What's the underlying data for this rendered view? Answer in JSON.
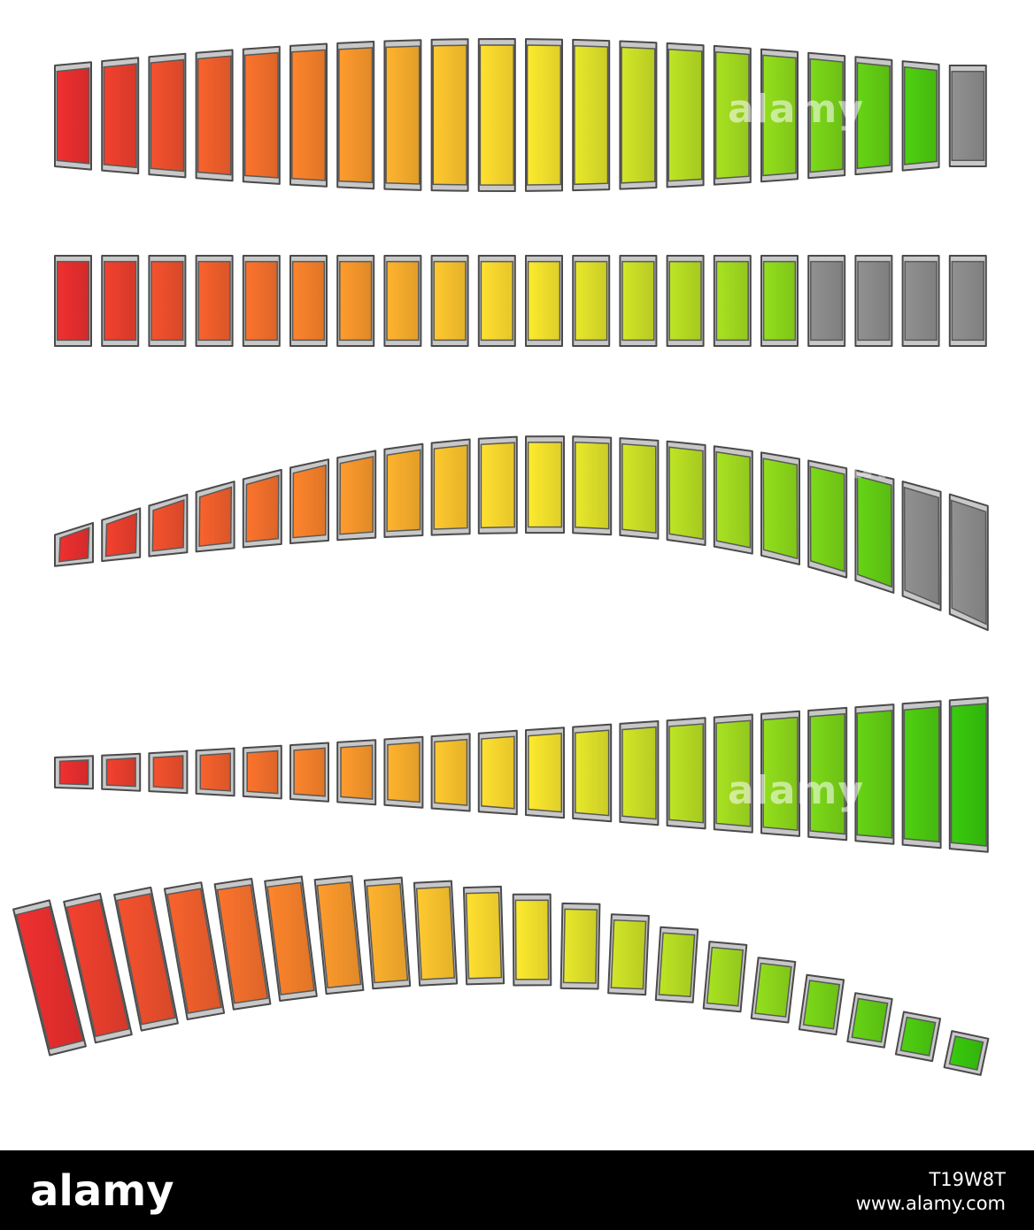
{
  "colors": {
    "frame_stroke": "#4a4a4a",
    "frame_fill": "#c8c8c8",
    "off_segment": "#8a8a8a",
    "gradient_stops": [
      "#e52e2e",
      "#f27a2a",
      "#fbe12e",
      "#9bd81e",
      "#36c20c"
    ]
  },
  "meters": [
    {
      "name": "meter-1-concave",
      "segments": 20,
      "active": 19
    },
    {
      "name": "meter-2-flat",
      "segments": 20,
      "active": 16
    },
    {
      "name": "meter-3-arch-rising",
      "segments": 20,
      "active": 18
    },
    {
      "name": "meter-4-wedge-rising",
      "segments": 20,
      "active": 20
    },
    {
      "name": "meter-5-arch-falling",
      "segments": 20,
      "active": 20
    }
  ],
  "watermarks": {
    "meter1": "alamy",
    "meter3": "alamy",
    "meter4": "alamy"
  },
  "footer": {
    "logo": "alamy",
    "image_id": "T19W8T",
    "site": "www.alamy.com"
  }
}
